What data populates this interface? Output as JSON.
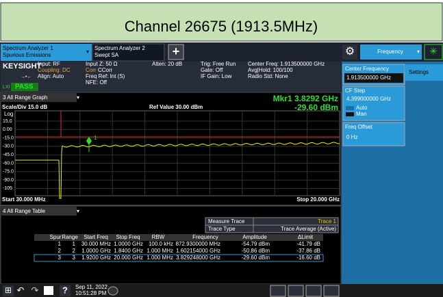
{
  "header": {
    "title": "Channel 26675 (1913.5MHz)"
  },
  "tabs": [
    {
      "line1": "Spectrum Analyzer 1",
      "line2": "Spurious Emissions"
    },
    {
      "line1": "Spectrum Analyzer 2",
      "line2": "Swept SA"
    }
  ],
  "add_tab": "+",
  "menu": "Frequency",
  "info": {
    "brand": "KEYSIGHT",
    "lxi": "LXI",
    "status": "PASS",
    "input": "Input: RF",
    "coupling": "Coupling: DC",
    "align": "Align: Auto",
    "input_z": "Input Z: 50 Ω",
    "corr_label": "Corr",
    "corr_value": "CCorr",
    "freq_ref": "Freq Ref: Int (S)",
    "nfe": "NFE: Off",
    "atten": "Atten: 20 dB",
    "trig": "Trig: Free Run",
    "gate": "Gate: Off",
    "if_gain": "IF Gain: Low",
    "center": "Center Freq: 1.913500000 GHz",
    "avg": "Avg|Hold: 100/100",
    "radio": "Radio Std: None"
  },
  "graph": {
    "window": "3 All Range Graph",
    "scale": "Scale/Div 15.0 dB",
    "ref": "Ref Value 30.00 dBm",
    "log": "Log",
    "marker": "Mkr1  3.8292 GHz",
    "marker_amp": "-29.60 dBm",
    "marker_id": "1",
    "y_labels": [
      "15.0",
      "0.00",
      "-15.0",
      "-30.0",
      "-45.0",
      "-60.0",
      "-75.0",
      "-90.0",
      "-105"
    ],
    "start": "Start 30.000 MHz",
    "stop": "Stop 20.000 GHz"
  },
  "panel": {
    "center_label": "Center Frequency",
    "center_value": "1.913500000 GHz",
    "step_label": "CF Step",
    "step_value": "4.399000000 GHz",
    "auto": "Auto",
    "man": "Man",
    "offset_label": "Freq Offset",
    "offset_value": "0 Hz",
    "settings": "Settings"
  },
  "table": {
    "window": "4 All Range Table",
    "measure_label": "Measure Trace",
    "measure_value": "Trace 1",
    "type_label": "Trace Type",
    "type_value": "Trace Average (Active)",
    "columns": [
      "Spur",
      "Range",
      "Start Freq",
      "Stop Freq",
      "RBW",
      "Frequency",
      "Amplitude",
      "ΔLimit"
    ],
    "rows": [
      [
        "1",
        "1",
        "30.000 MHz",
        "1.0000 GHz",
        "100.0 kHz",
        "872.9300000 MHz",
        "-54.79 dBm",
        "-41.79 dB"
      ],
      [
        "2",
        "2",
        "1.0000 GHz",
        "1.8400 GHz",
        "1.000 MHz",
        "1.602154000 GHz",
        "-50.86 dBm",
        "-37.86 dB"
      ],
      [
        "3",
        "3",
        "1.9200 GHz",
        "20.000 GHz",
        "1.000 MHz",
        "3.829248000 GHz",
        "-29.60 dBm",
        "-16.60 dB"
      ]
    ]
  },
  "taskbar": {
    "help": "?",
    "date": "Sep 11, 2022",
    "time": "10:51:28 PM"
  }
}
